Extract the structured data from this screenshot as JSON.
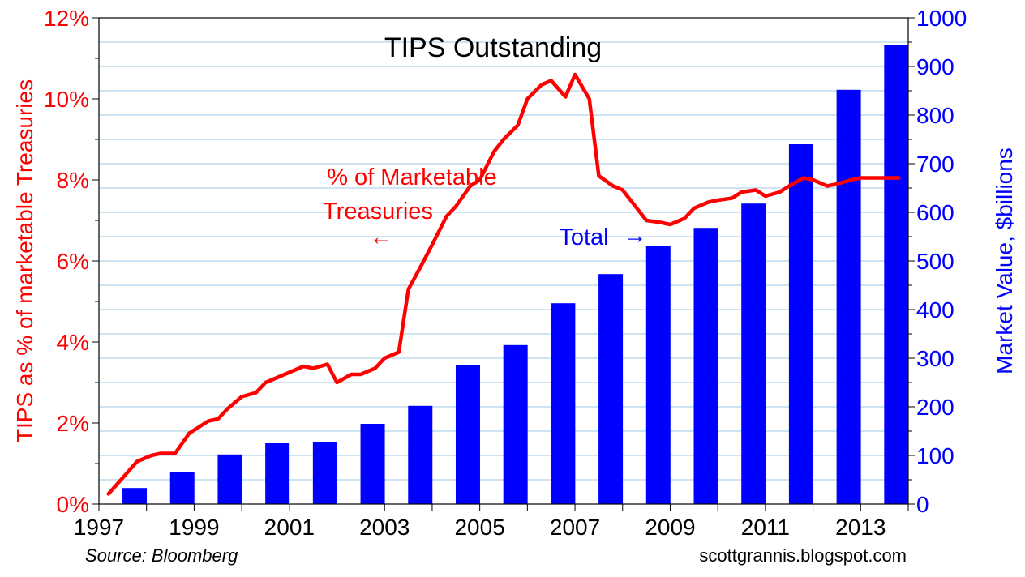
{
  "chart_data": {
    "type": "bar+line",
    "title": "TIPS Outstanding",
    "source": "Source: Bloomberg",
    "credit": "scottgrannis.blogspot.com",
    "x_axis": {
      "range": [
        1997,
        2014
      ],
      "tick_labels": [
        "1997",
        "1999",
        "2001",
        "2003",
        "2005",
        "2007",
        "2009",
        "2011",
        "2013"
      ],
      "tick_values": [
        1997,
        1999,
        2001,
        2003,
        2005,
        2007,
        2009,
        2011,
        2013
      ]
    },
    "y_left": {
      "label": "TIPS as % of marketable Treasuries",
      "range": [
        0,
        12
      ],
      "tick_labels": [
        "0%",
        "2%",
        "4%",
        "6%",
        "8%",
        "10%",
        "12%"
      ],
      "tick_values": [
        0,
        2,
        4,
        6,
        8,
        10,
        12
      ],
      "color": "#ff0000"
    },
    "y_right": {
      "label": "Market Value, $billions",
      "range": [
        0,
        1000
      ],
      "tick_labels": [
        "0",
        "100",
        "200",
        "300",
        "400",
        "500",
        "600",
        "700",
        "800",
        "900",
        "1000"
      ],
      "tick_values": [
        0,
        100,
        200,
        300,
        400,
        500,
        600,
        700,
        800,
        900,
        1000
      ],
      "color": "#0000ff"
    },
    "annotations": {
      "line_label_1": "% of Marketable",
      "line_label_2": "Treasuries",
      "line_arrow": "←",
      "bar_label": "Total",
      "bar_arrow": "→"
    },
    "bars": {
      "name": "Total",
      "axis": "right",
      "color": "#0000ff",
      "x": [
        1997.75,
        1998.75,
        1999.75,
        2000.75,
        2001.75,
        2002.75,
        2003.75,
        2004.75,
        2005.75,
        2006.75,
        2007.75,
        2008.75,
        2009.75,
        2010.75,
        2011.75,
        2012.75,
        2013.75
      ],
      "values": [
        33,
        65,
        102,
        125,
        127,
        165,
        202,
        285,
        327,
        413,
        473,
        530,
        568,
        618,
        740,
        852,
        945
      ]
    },
    "line": {
      "name": "% of Marketable Treasuries",
      "axis": "left",
      "color": "#ff0000",
      "x": [
        1997.2,
        1997.5,
        1997.8,
        1998.1,
        1998.3,
        1998.6,
        1998.9,
        1999.1,
        1999.3,
        1999.5,
        1999.7,
        2000.0,
        2000.3,
        2000.5,
        2000.8,
        2001.0,
        2001.3,
        2001.5,
        2001.8,
        2002.0,
        2002.3,
        2002.5,
        2002.8,
        2003.0,
        2003.3,
        2003.5,
        2003.8,
        2004.0,
        2004.3,
        2004.5,
        2004.8,
        2005.0,
        2005.3,
        2005.5,
        2005.8,
        2006.0,
        2006.3,
        2006.5,
        2006.8,
        2007.0,
        2007.3,
        2007.5,
        2007.8,
        2008.0,
        2008.3,
        2008.5,
        2008.8,
        2009.0,
        2009.3,
        2009.5,
        2009.8,
        2010.0,
        2010.3,
        2010.5,
        2010.8,
        2011.0,
        2011.3,
        2011.5,
        2011.8,
        2012.0,
        2012.3,
        2012.5,
        2012.8,
        2013.0,
        2013.3,
        2013.5,
        2013.8
      ],
      "values": [
        0.25,
        0.65,
        1.05,
        1.2,
        1.25,
        1.25,
        1.75,
        1.9,
        2.05,
        2.1,
        2.35,
        2.65,
        2.75,
        3.0,
        3.15,
        3.25,
        3.4,
        3.35,
        3.45,
        3.0,
        3.2,
        3.2,
        3.35,
        3.6,
        3.75,
        5.3,
        5.95,
        6.4,
        7.1,
        7.35,
        7.85,
        8.0,
        8.7,
        9.0,
        9.35,
        10.0,
        10.35,
        10.45,
        10.05,
        10.6,
        10.0,
        8.1,
        7.85,
        7.75,
        7.3,
        7.0,
        6.95,
        6.9,
        7.05,
        7.3,
        7.45,
        7.5,
        7.55,
        7.7,
        7.75,
        7.6,
        7.7,
        7.85,
        8.05,
        8.0,
        7.85,
        7.9,
        8.0,
        8.05,
        8.05,
        8.05,
        8.05
      ]
    }
  }
}
